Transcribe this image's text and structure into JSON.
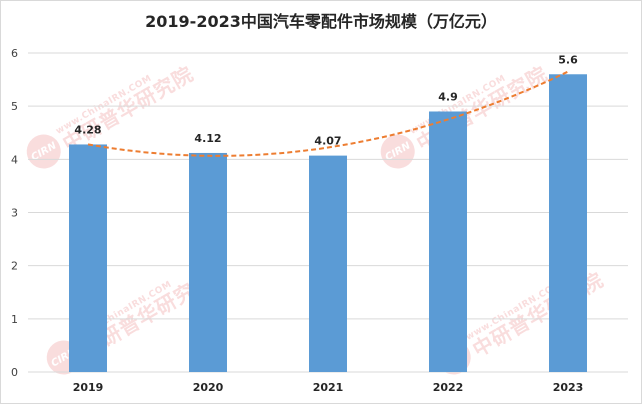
{
  "chart_data": {
    "type": "bar",
    "title": "2019-2023中国汽车零配件市场规模（万亿元）",
    "categories": [
      "2019",
      "2020",
      "2021",
      "2022",
      "2023"
    ],
    "values": [
      4.28,
      4.12,
      4.07,
      4.9,
      5.6
    ],
    "data_labels": [
      "4.28",
      "4.12",
      "4.07",
      "4.9",
      "5.6"
    ],
    "ylim": [
      0,
      6
    ],
    "yticks": [
      "0",
      "1",
      "2",
      "3",
      "4",
      "5",
      "6"
    ],
    "xlabel": "",
    "ylabel": "",
    "grid": true,
    "trendline": "dashed polynomial",
    "colors": {
      "bar": "#5b9bd5",
      "trend": "#ed7d31",
      "grid": "#d9d9d9",
      "axis_text": "#404040"
    }
  },
  "watermark": {
    "logo": "CIRN",
    "url": "www.ChinaIRN.COM",
    "name": "中研普华研究院"
  }
}
